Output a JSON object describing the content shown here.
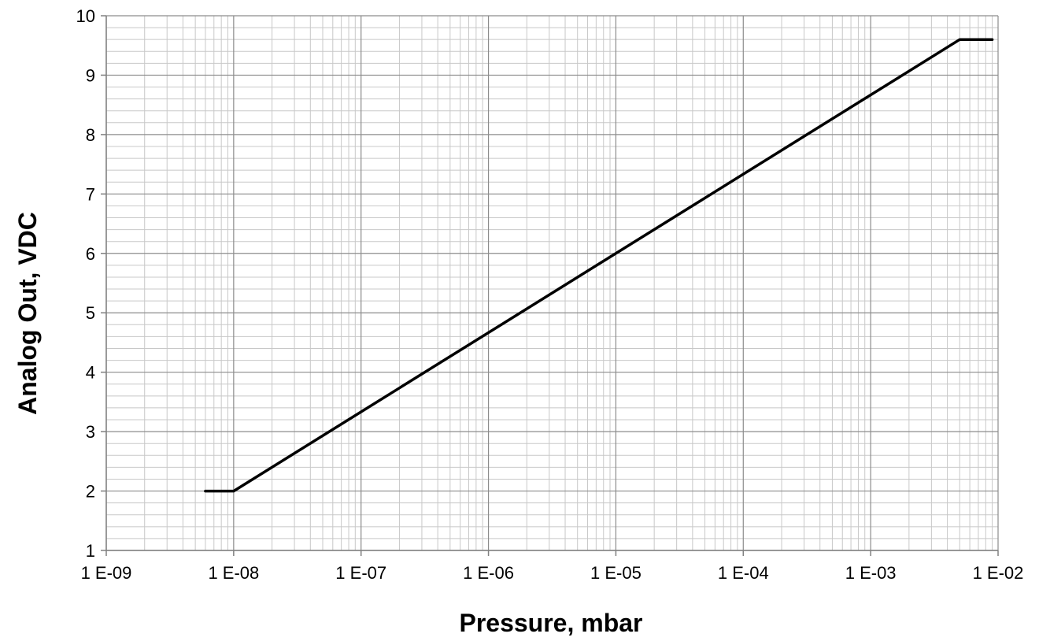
{
  "chart_data": {
    "type": "line",
    "title": "",
    "xlabel": "Pressure, mbar",
    "ylabel": "Analog Out, VDC",
    "x_scale": "log",
    "xlim": [
      1e-09,
      0.01
    ],
    "ylim": [
      1,
      10
    ],
    "x_ticks": [
      1e-09,
      1e-08,
      1e-07,
      1e-06,
      1e-05,
      0.0001,
      0.001,
      0.01
    ],
    "x_tick_labels": [
      "1 E-09",
      "1 E-08",
      "1 E-07",
      "1 E-06",
      "1 E-05",
      "1 E-04",
      "1 E-03",
      "1 E-02"
    ],
    "y_ticks": [
      1,
      2,
      3,
      4,
      5,
      6,
      7,
      8,
      9,
      10
    ],
    "y_tick_labels": [
      "1",
      "2",
      "3",
      "4",
      "5",
      "6",
      "7",
      "8",
      "9",
      "10"
    ],
    "grid": true,
    "legend": "none",
    "series": [
      {
        "x": [
          6e-09,
          1e-08,
          0.005,
          0.009
        ],
        "y": [
          2.0,
          2.0,
          9.6,
          9.6
        ],
        "color": "#000000"
      }
    ]
  }
}
